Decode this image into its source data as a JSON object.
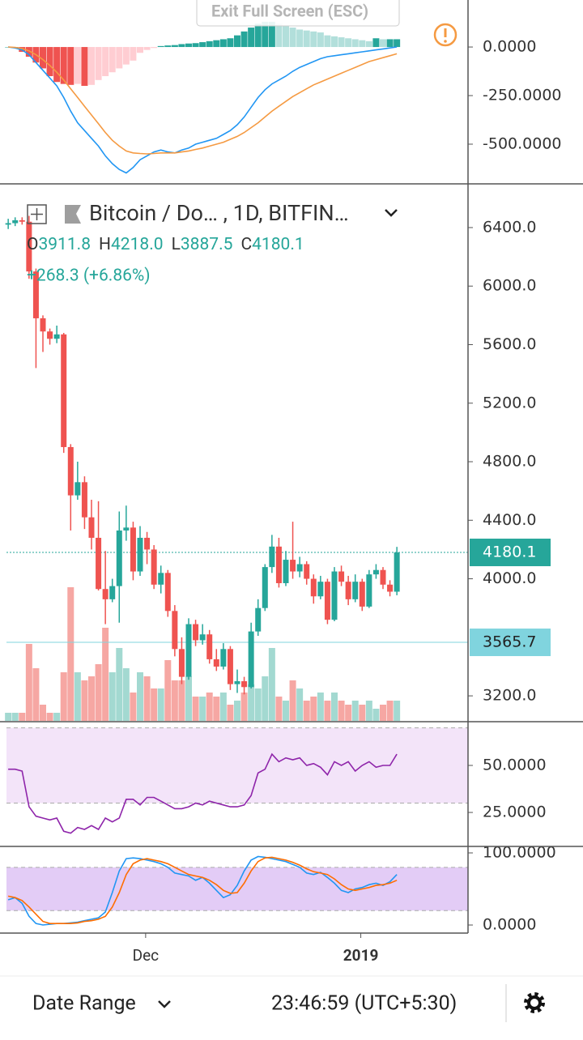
{
  "ui": {
    "exit_button": "Exit Full Screen (ESC)",
    "date_range": "Date Range",
    "clock": "23:46:59 (UTC+5:30)"
  },
  "chart_data": [
    {
      "type": "macd",
      "xlim": [
        -0.25,
        66.25
      ],
      "ylim": [
        -696,
        242
      ],
      "yticks": [
        {
          "value": 0,
          "label": "0.0000"
        },
        {
          "value": -250,
          "label": "-250.0000"
        },
        {
          "value": -500,
          "label": "-500.0000"
        }
      ],
      "histogram": {
        "colors": [
          "#26a69a",
          "#b2dfdb",
          "#ffcdd2",
          "#ef5350"
        ],
        "values": [
          0,
          0,
          -25,
          -50,
          -80,
          -110,
          -150,
          -180,
          -190,
          -195,
          -190,
          -200,
          -195,
          -170,
          -150,
          -130,
          -110,
          -90,
          -70,
          -30,
          -15,
          -5,
          5,
          8,
          10,
          15,
          18,
          20,
          25,
          30,
          35,
          40,
          45,
          60,
          80,
          100,
          120,
          130,
          130,
          120,
          110,
          100,
          90,
          85,
          80,
          75,
          60,
          55,
          50,
          45,
          40,
          35,
          30,
          45,
          40,
          40,
          40
        ]
      },
      "series": [
        {
          "color": "#2196f3",
          "values": [
            0,
            -5,
            -15,
            -40,
            -80,
            -120,
            -160,
            -200,
            -260,
            -330,
            -390,
            -430,
            -470,
            -510,
            -560,
            -600,
            -630,
            -648,
            -620,
            -580,
            -560,
            -540,
            -530,
            -540,
            -545,
            -530,
            -520,
            -500,
            -490,
            -480,
            -470,
            -450,
            -430,
            -400,
            -360,
            -310,
            -260,
            -220,
            -190,
            -170,
            -150,
            -125,
            -105,
            -90,
            -75,
            -60,
            -50,
            -45,
            -40,
            -35,
            -30,
            -25,
            -20,
            -15,
            -10,
            -5,
            0
          ]
        },
        {
          "color": "#f59a42",
          "values": [
            0,
            -2,
            -8,
            -20,
            -40,
            -65,
            -95,
            -130,
            -170,
            -215,
            -260,
            -305,
            -350,
            -395,
            -440,
            -480,
            -510,
            -535,
            -545,
            -548,
            -550,
            -548,
            -545,
            -545,
            -545,
            -540,
            -535,
            -527,
            -520,
            -510,
            -500,
            -490,
            -475,
            -460,
            -440,
            -415,
            -390,
            -360,
            -330,
            -305,
            -280,
            -255,
            -235,
            -215,
            -195,
            -180,
            -165,
            -150,
            -135,
            -120,
            -105,
            -90,
            -75,
            -65,
            -55,
            -45,
            -35
          ]
        }
      ]
    },
    {
      "type": "candlestick",
      "title": "Bitcoin / Do… , 1D, BITFIN…",
      "ohlc_letters": [
        "O",
        "H",
        "L",
        "C"
      ],
      "ohlc_values": [
        "3911.8",
        "4218.0",
        "3887.5",
        "4180.1"
      ],
      "change": "+268.3 (+6.86%)",
      "up_color": "#26a69a",
      "down_color": "#ef5350",
      "volume_up_color": "#a3d9d1",
      "volume_down_color": "#f6a7a3",
      "xlim": [
        -0.25,
        66.25
      ],
      "ylim": [
        3029,
        6682
      ],
      "xticks": [
        {
          "value": 19.8,
          "label": "Dec"
        },
        {
          "value": 50.8,
          "label": "2019"
        }
      ],
      "yticks": [
        {
          "value": 3200,
          "label": "3200.0"
        },
        {
          "value": 4000,
          "label": "4000.0"
        },
        {
          "value": 4400,
          "label": "4400.0"
        },
        {
          "value": 4800,
          "label": "4800.0"
        },
        {
          "value": 5200,
          "label": "5200.0"
        },
        {
          "value": 5600,
          "label": "5600.0"
        },
        {
          "value": 6000,
          "label": "6000.0"
        },
        {
          "value": 6400,
          "label": "6400.0"
        }
      ],
      "price_lines": [
        {
          "value": 4180.1,
          "label": "4180.1",
          "color": "#26a69a",
          "text_color": "#ffffff",
          "dotted": true
        },
        {
          "value": 3565.7,
          "label": "3565.7",
          "color": "#80d4de",
          "text_color": "#222222",
          "dotted": false
        }
      ],
      "open": [
        6420,
        6430,
        6450,
        6440,
        6100,
        5780,
        5690,
        5640,
        5670,
        4900,
        4570,
        4660,
        4420,
        4280,
        3930,
        3860,
        3950,
        4330,
        4350,
        4050,
        4280,
        4200,
        3960,
        4040,
        3780,
        3520,
        3330,
        3690,
        3580,
        3620,
        3450,
        3400,
        3520,
        3280,
        3300,
        3260,
        3640,
        3800,
        4080,
        4220,
        3970,
        4130,
        4050,
        4100,
        4000,
        3880,
        3980,
        3720,
        4050,
        3980,
        3860,
        3980,
        3810,
        4030,
        4060,
        3960,
        3911.8
      ],
      "high": [
        6460,
        6470,
        6470,
        6480,
        6120,
        5800,
        5710,
        5730,
        5680,
        4920,
        4800,
        4700,
        4540,
        4530,
        4190,
        4000,
        4460,
        4500,
        4390,
        4360,
        4320,
        4230,
        4090,
        4060,
        3820,
        3600,
        3730,
        3720,
        3690,
        3650,
        3520,
        3560,
        3540,
        3380,
        3330,
        3700,
        3860,
        4100,
        4300,
        4280,
        4190,
        4390,
        4150,
        4120,
        4030,
        4020,
        4000,
        4080,
        4090,
        4020,
        4030,
        4000,
        4060,
        4100,
        4080,
        3990,
        4218
      ],
      "low": [
        6390,
        6410,
        6420,
        6050,
        5440,
        5550,
        5600,
        5610,
        4860,
        4330,
        4540,
        4340,
        4200,
        3920,
        3690,
        3840,
        3700,
        4260,
        3990,
        4020,
        4100,
        3930,
        3900,
        3740,
        3470,
        3280,
        3310,
        3540,
        3550,
        3420,
        3370,
        3380,
        3240,
        3220,
        3210,
        3250,
        3610,
        3780,
        4040,
        3940,
        3950,
        4000,
        4010,
        3960,
        3830,
        3860,
        3690,
        3710,
        3950,
        3820,
        3840,
        3780,
        3800,
        4000,
        3930,
        3880,
        3887.5
      ],
      "close": [
        6430,
        6450,
        6440,
        6100,
        5780,
        5690,
        5640,
        5670,
        4900,
        4570,
        4660,
        4420,
        4280,
        3930,
        3860,
        3950,
        4330,
        4350,
        4050,
        4280,
        4200,
        3960,
        4040,
        3780,
        3520,
        3330,
        3690,
        3580,
        3620,
        3450,
        3400,
        3520,
        3280,
        3300,
        3260,
        3640,
        3800,
        4080,
        4220,
        3970,
        4130,
        4050,
        4100,
        4000,
        3880,
        3980,
        3720,
        4050,
        3980,
        3860,
        3980,
        3810,
        4030,
        4060,
        3960,
        3911.8,
        4180.1
      ],
      "volume": [
        10,
        10,
        10,
        95,
        65,
        20,
        10,
        10,
        60,
        165,
        60,
        50,
        55,
        70,
        115,
        60,
        90,
        65,
        35,
        60,
        55,
        40,
        40,
        75,
        50,
        50,
        55,
        30,
        30,
        35,
        30,
        35,
        20,
        25,
        35,
        45,
        40,
        55,
        90,
        30,
        25,
        50,
        40,
        25,
        30,
        35,
        25,
        35,
        25,
        20,
        25,
        20,
        25,
        15,
        20,
        25,
        25
      ]
    },
    {
      "type": "line",
      "xlim": [
        -0.25,
        66.25
      ],
      "ylim": [
        7.8,
        72.4
      ],
      "yticks": [
        {
          "value": 50,
          "label": "50.0000"
        },
        {
          "value": 25,
          "label": "25.0000"
        }
      ],
      "band": [
        30,
        70
      ],
      "band_color": "#f3e4f9",
      "series": [
        {
          "color": "#8e24aa",
          "values": [
            48,
            48,
            47,
            28,
            23,
            22,
            21,
            22,
            15,
            14,
            17,
            16,
            18,
            16,
            22,
            20,
            22,
            32,
            32,
            29,
            33,
            33,
            31,
            29,
            27,
            27,
            28,
            30,
            29,
            31,
            30,
            29,
            28,
            28,
            29,
            34,
            46,
            48,
            56,
            52,
            54,
            53,
            54,
            50,
            51,
            49,
            45,
            52,
            50,
            52,
            47,
            50,
            52,
            49,
            50,
            50,
            56
          ]
        }
      ]
    },
    {
      "type": "line",
      "xlim": [
        -0.25,
        66.25
      ],
      "ylim": [
        -11.2,
        109
      ],
      "yticks": [
        {
          "value": 100,
          "label": "100.0000"
        },
        {
          "value": 0,
          "label": "0.0000"
        }
      ],
      "band": [
        20,
        80
      ],
      "band_color": "#e3ccf6",
      "series": [
        {
          "color": "#2196f3",
          "values": [
            35,
            38,
            30,
            12,
            2,
            0,
            1,
            2,
            2,
            3,
            4,
            6,
            8,
            10,
            18,
            45,
            75,
            92,
            93,
            92,
            90,
            88,
            85,
            80,
            72,
            70,
            68,
            62,
            66,
            58,
            48,
            38,
            42,
            55,
            75,
            90,
            95,
            94,
            92,
            90,
            88,
            84,
            80,
            72,
            70,
            73,
            66,
            58,
            48,
            45,
            50,
            52,
            56,
            58,
            55,
            60,
            70
          ]
        },
        {
          "color": "#ff6d00",
          "values": [
            40,
            38,
            34,
            25,
            15,
            5,
            2,
            2,
            2,
            2,
            3,
            5,
            6,
            8,
            12,
            25,
            45,
            70,
            85,
            90,
            92,
            90,
            88,
            85,
            80,
            75,
            70,
            68,
            66,
            62,
            56,
            48,
            44,
            45,
            58,
            75,
            88,
            93,
            94,
            92,
            90,
            87,
            83,
            78,
            74,
            72,
            70,
            64,
            56,
            50,
            48,
            50,
            52,
            55,
            56,
            58,
            62
          ]
        }
      ]
    }
  ]
}
